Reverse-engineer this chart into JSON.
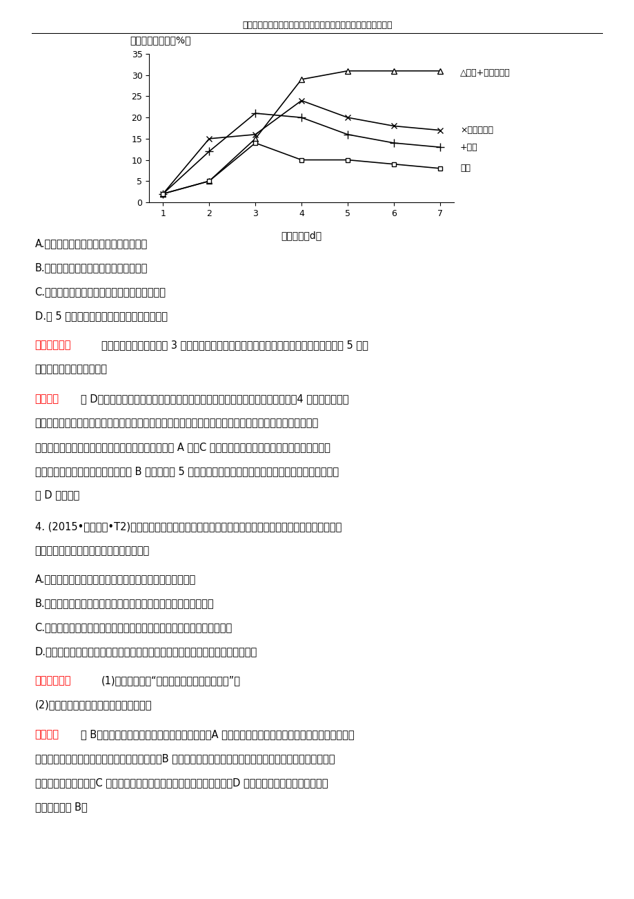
{
  "header_text": "最新学习考试资料试卷件及海量高中、初中教学课尽在金锄头文库",
  "chart_title": "鲜重累积增加率（%）",
  "xlabel": "瓶插时间（d）",
  "ylim": [
    0,
    35
  ],
  "xlim": [
    1,
    7
  ],
  "yticks": [
    0,
    5,
    10,
    15,
    20,
    25,
    30,
    35
  ],
  "xticks": [
    1,
    2,
    3,
    4,
    5,
    6,
    7
  ],
  "y_sucrose_cyto": [
    2,
    5,
    15,
    29,
    31,
    31,
    31
  ],
  "y_cyto": [
    2,
    15,
    16,
    24,
    20,
    18,
    17
  ],
  "y_sucrose": [
    2,
    12,
    21,
    20,
    16,
    14,
    13
  ],
  "y_water": [
    2,
    5,
    14,
    10,
    10,
    9,
    8
  ],
  "options": [
    "A.蔗糖和细胞分裂素都有延缓衰败的作用",
    "B.蔗糖可为花的呼吸作用提供更多的底物",
    "C.同时添加蔗糖和细胞分裂素更有利于插花保鲜",
    "D.第 5 天花中脆落酸的含量应该是清水组最低"
  ],
  "q4_options": [
    "A.适时打顶去心，可促棉株开花结实。（据《农桑辑要》）",
    "B.肥田之法，种绿豆最佳，小豆、苝麻次之。（据《齐民要术》）",
    "C.正月种白稻，五月收获后，根茌长新稻，九月又成熟。（据《广志》）",
    "D.新携未熟红柿，每篹放木瓜两三枚，得气即发，温味尽失。（据《格物粗谈》）"
  ]
}
